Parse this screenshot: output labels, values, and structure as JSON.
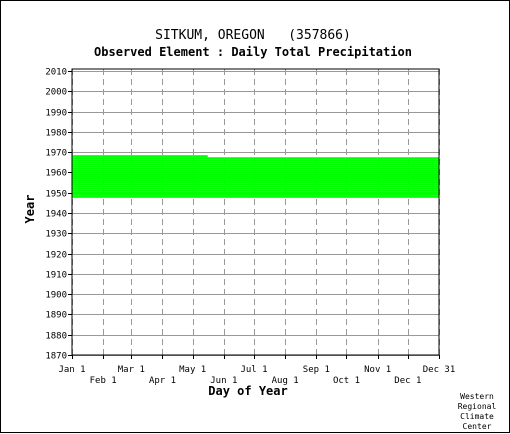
{
  "chart_data": {
    "type": "bar",
    "title": "SITKUM, OREGON   (357866)",
    "subtitle": "Observed Element : Daily Total Precipitation",
    "xlabel": "Day of Year",
    "ylabel": "Year",
    "ylim": [
      1870,
      2011
    ],
    "y_ticks": [
      1870,
      1880,
      1890,
      1900,
      1910,
      1920,
      1930,
      1940,
      1950,
      1960,
      1970,
      1980,
      1990,
      2000,
      2010
    ],
    "x_ticks_upper": [
      {
        "label": "Jan 1",
        "day": 1
      },
      {
        "label": "Mar 1",
        "day": 60
      },
      {
        "label": "May 1",
        "day": 121
      },
      {
        "label": "Jul 1",
        "day": 182
      },
      {
        "label": "Sep 1",
        "day": 244
      },
      {
        "label": "Nov 1",
        "day": 305
      },
      {
        "label": "Dec 31",
        "day": 366
      }
    ],
    "x_ticks_lower": [
      {
        "label": "Feb 1",
        "day": 32
      },
      {
        "label": "Apr 1",
        "day": 91
      },
      {
        "label": "Jun 1",
        "day": 152
      },
      {
        "label": "Aug 1",
        "day": 213
      },
      {
        "label": "Oct 1",
        "day": 274
      },
      {
        "label": "Dec 1",
        "day": 335
      }
    ],
    "grid": true,
    "bar_color": "#00ff00",
    "data_coverage": [
      {
        "year": 1948,
        "start_day": 1,
        "end_day": 366
      },
      {
        "year": 1949,
        "start_day": 1,
        "end_day": 366
      },
      {
        "year": 1950,
        "start_day": 1,
        "end_day": 366
      },
      {
        "year": 1951,
        "start_day": 1,
        "end_day": 366
      },
      {
        "year": 1952,
        "start_day": 1,
        "end_day": 366
      },
      {
        "year": 1953,
        "start_day": 1,
        "end_day": 366
      },
      {
        "year": 1954,
        "start_day": 1,
        "end_day": 366
      },
      {
        "year": 1955,
        "start_day": 1,
        "end_day": 366
      },
      {
        "year": 1956,
        "start_day": 1,
        "end_day": 366
      },
      {
        "year": 1957,
        "start_day": 1,
        "end_day": 366
      },
      {
        "year": 1958,
        "start_day": 1,
        "end_day": 366
      },
      {
        "year": 1959,
        "start_day": 1,
        "end_day": 366
      },
      {
        "year": 1960,
        "start_day": 1,
        "end_day": 366
      },
      {
        "year": 1961,
        "start_day": 1,
        "end_day": 366
      },
      {
        "year": 1962,
        "start_day": 1,
        "end_day": 366
      },
      {
        "year": 1963,
        "start_day": 1,
        "end_day": 366
      },
      {
        "year": 1964,
        "start_day": 1,
        "end_day": 366
      },
      {
        "year": 1965,
        "start_day": 1,
        "end_day": 366
      },
      {
        "year": 1966,
        "start_day": 1,
        "end_day": 366
      },
      {
        "year": 1967,
        "start_day": 1,
        "end_day": 366
      },
      {
        "year": 1968,
        "start_day": 1,
        "end_day": 136
      }
    ]
  },
  "credit": [
    "Western",
    "Regional",
    "Climate",
    "Center"
  ]
}
